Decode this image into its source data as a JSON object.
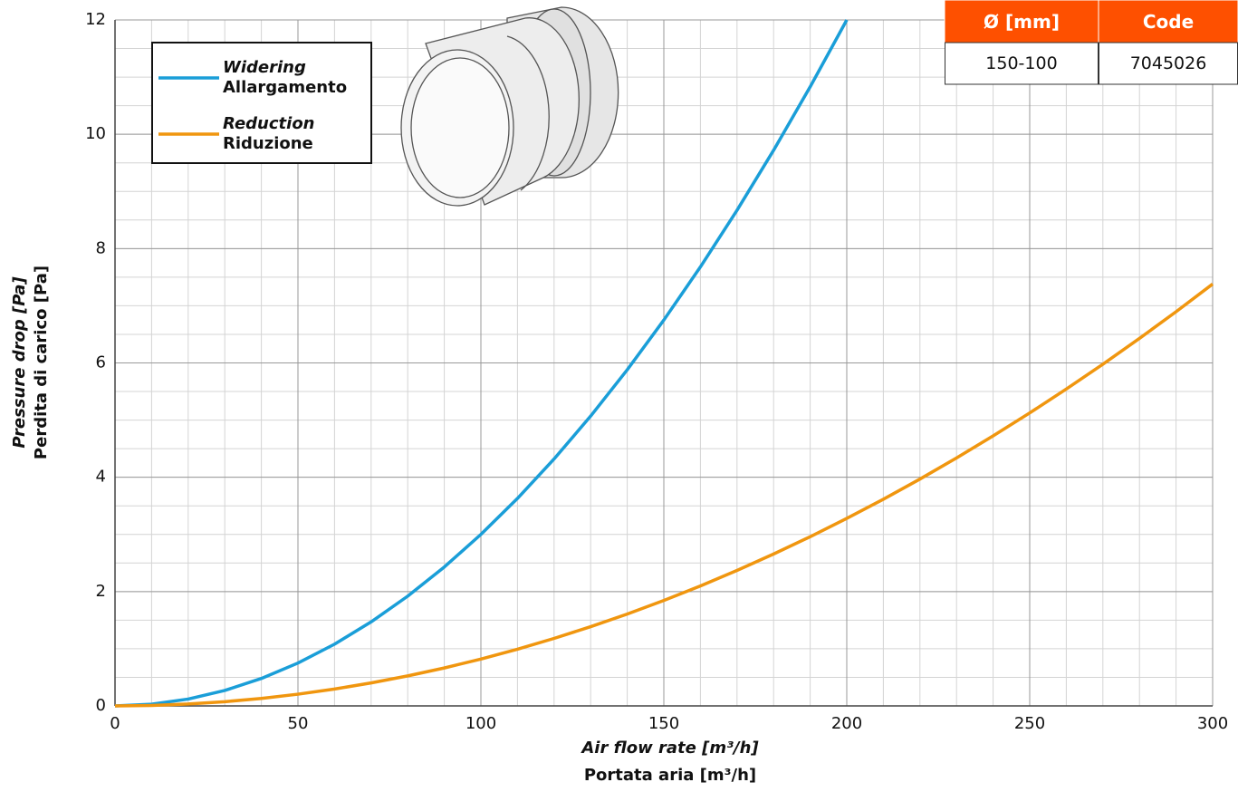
{
  "chart_data": {
    "type": "line",
    "x_title": "Air flow rate [m³/h]",
    "x_subtitle": "Portata aria [m³/h]",
    "y_title": "Pressure drop [Pa]",
    "y_subtitle": "Perdita di carico [Pa]",
    "x": [
      0,
      10,
      20,
      30,
      40,
      50,
      60,
      70,
      80,
      90,
      100,
      110,
      120,
      130,
      140,
      150,
      160,
      170,
      180,
      190,
      200,
      210,
      220,
      230,
      240,
      250,
      260,
      270,
      280,
      290,
      300
    ],
    "series": [
      {
        "name": "Widering",
        "subname": "Allargamento",
        "color": "#1a9ed8",
        "values": [
          0,
          0.03,
          0.12,
          0.27,
          0.48,
          0.75,
          1.08,
          1.47,
          1.92,
          2.43,
          3.0,
          3.63,
          4.32,
          5.07,
          5.88,
          6.75,
          7.68,
          8.67,
          9.72,
          10.83,
          12.0,
          null,
          null,
          null,
          null,
          null,
          null,
          null,
          null,
          null,
          null
        ]
      },
      {
        "name": "Reduction",
        "subname": "Riduzione",
        "color": "#f0960f",
        "values": [
          0,
          0.008,
          0.033,
          0.074,
          0.131,
          0.205,
          0.295,
          0.402,
          0.525,
          0.664,
          0.82,
          0.992,
          1.181,
          1.386,
          1.607,
          1.845,
          2.099,
          2.37,
          2.657,
          2.96,
          3.28,
          3.616,
          3.968,
          4.338,
          4.723,
          5.125,
          5.543,
          5.978,
          6.429,
          6.896,
          7.38
        ]
      }
    ],
    "xlim": [
      0,
      300
    ],
    "xticks": [
      0,
      50,
      100,
      150,
      200,
      250,
      300
    ],
    "ylim": [
      0,
      12
    ],
    "yticks": [
      0,
      2,
      4,
      6,
      8,
      10,
      12
    ],
    "grid": true,
    "minor_grid": {
      "x": 10,
      "y": 0.5
    },
    "legend": "upper left",
    "table": {
      "header_color": "#fe5000",
      "headers": [
        "Ø [mm]",
        "Code"
      ],
      "rows": [
        [
          "150-100",
          "7045026"
        ]
      ]
    }
  }
}
